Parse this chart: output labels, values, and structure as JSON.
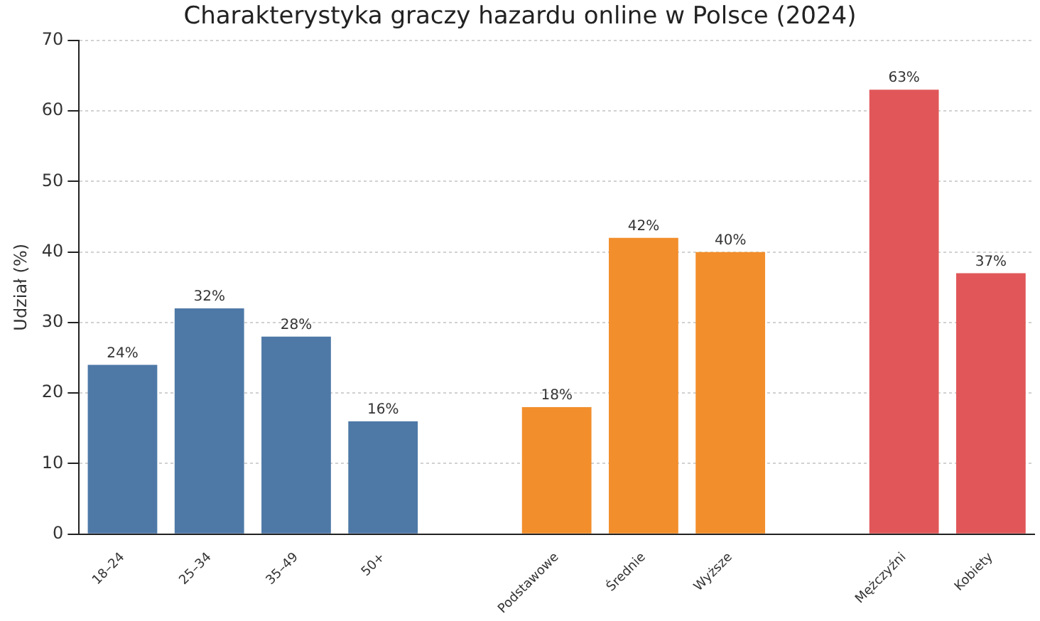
{
  "chart_data": {
    "type": "bar",
    "title": "Charakterystyka graczy hazardu online w Polsce (2024)",
    "ylabel": "Udział (%)",
    "categories": [
      "18–24",
      "25–34",
      "35–49",
      "50+",
      null,
      "Podstawowe",
      "Średnie",
      "Wyższe",
      null,
      "Mężczyźni",
      "Kobiety"
    ],
    "values": [
      24,
      32,
      28,
      16,
      null,
      18,
      42,
      40,
      null,
      63,
      37
    ],
    "colors": [
      "#4e79a7",
      "#4e79a7",
      "#4e79a7",
      "#4e79a7",
      null,
      "#f28e2b",
      "#f28e2b",
      "#f28e2b",
      null,
      "#e15759",
      "#e15759"
    ],
    "value_labels": [
      "24%",
      "32%",
      "28%",
      "16%",
      null,
      "18%",
      "42%",
      "40%",
      null,
      "63%",
      "37%"
    ],
    "ylim": [
      0,
      70
    ],
    "yticks": [
      0,
      10,
      20,
      30,
      40,
      50,
      60,
      70
    ],
    "grid": "y",
    "legend": false
  }
}
